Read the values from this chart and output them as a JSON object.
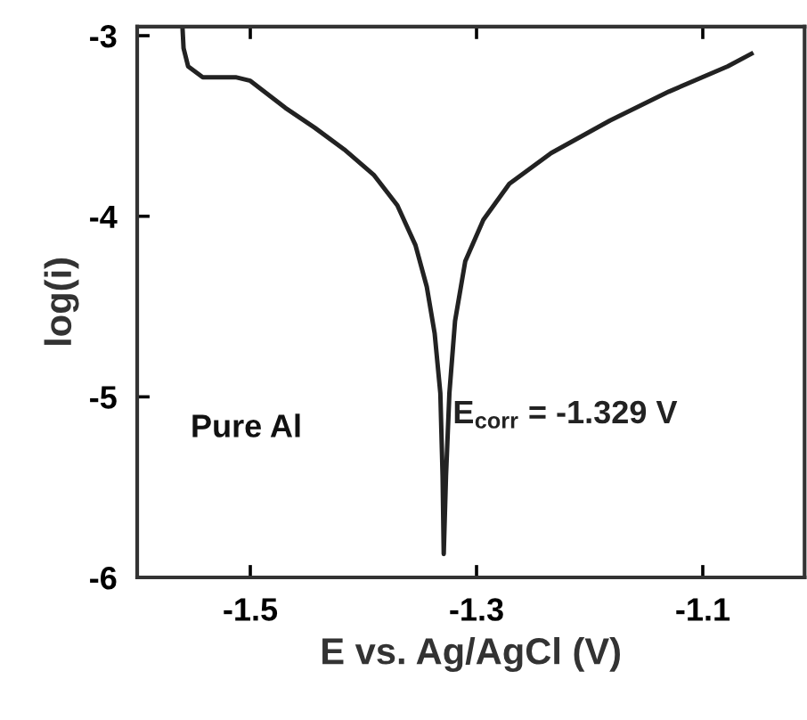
{
  "chart_data": {
    "type": "line",
    "xlabel": "E vs. Ag/AgCl (V)",
    "ylabel": "log(i)",
    "annotations": [
      "Pure Al",
      {
        "text": "E$_{corr}$ = -1.329 V",
        "x": -1.329,
        "y": -5.1
      }
    ],
    "xlim": [
      -1.6,
      -1.01
    ],
    "ylim": [
      -6,
      -2.95
    ],
    "xticks": [
      -1.5,
      -1.3,
      -1.1
    ],
    "yticks": [
      -6,
      -5,
      -4,
      -3
    ],
    "grid": false,
    "legend": false,
    "marker": "none",
    "line_style": "solid",
    "series": [
      {
        "color": "#222222",
        "x": [
          -1.56,
          -1.559,
          -1.555,
          -1.542,
          -1.513,
          -1.5,
          -1.469,
          -1.443,
          -1.417,
          -1.391,
          -1.37,
          -1.354,
          -1.344,
          -1.337,
          -1.332,
          -1.33,
          -1.329,
          -1.327,
          -1.324,
          -1.319,
          -1.31,
          -1.294,
          -1.271,
          -1.234,
          -1.182,
          -1.13,
          -1.078,
          -1.057
        ],
        "values": [
          -2.95,
          -3.07,
          -3.17,
          -3.23,
          -3.23,
          -3.25,
          -3.4,
          -3.51,
          -3.63,
          -3.77,
          -3.94,
          -4.16,
          -4.39,
          -4.65,
          -4.98,
          -5.44,
          -5.87,
          -5.44,
          -4.98,
          -4.58,
          -4.25,
          -4.02,
          -3.82,
          -3.65,
          -3.47,
          -3.31,
          -3.17,
          -3.1
        ]
      }
    ]
  }
}
